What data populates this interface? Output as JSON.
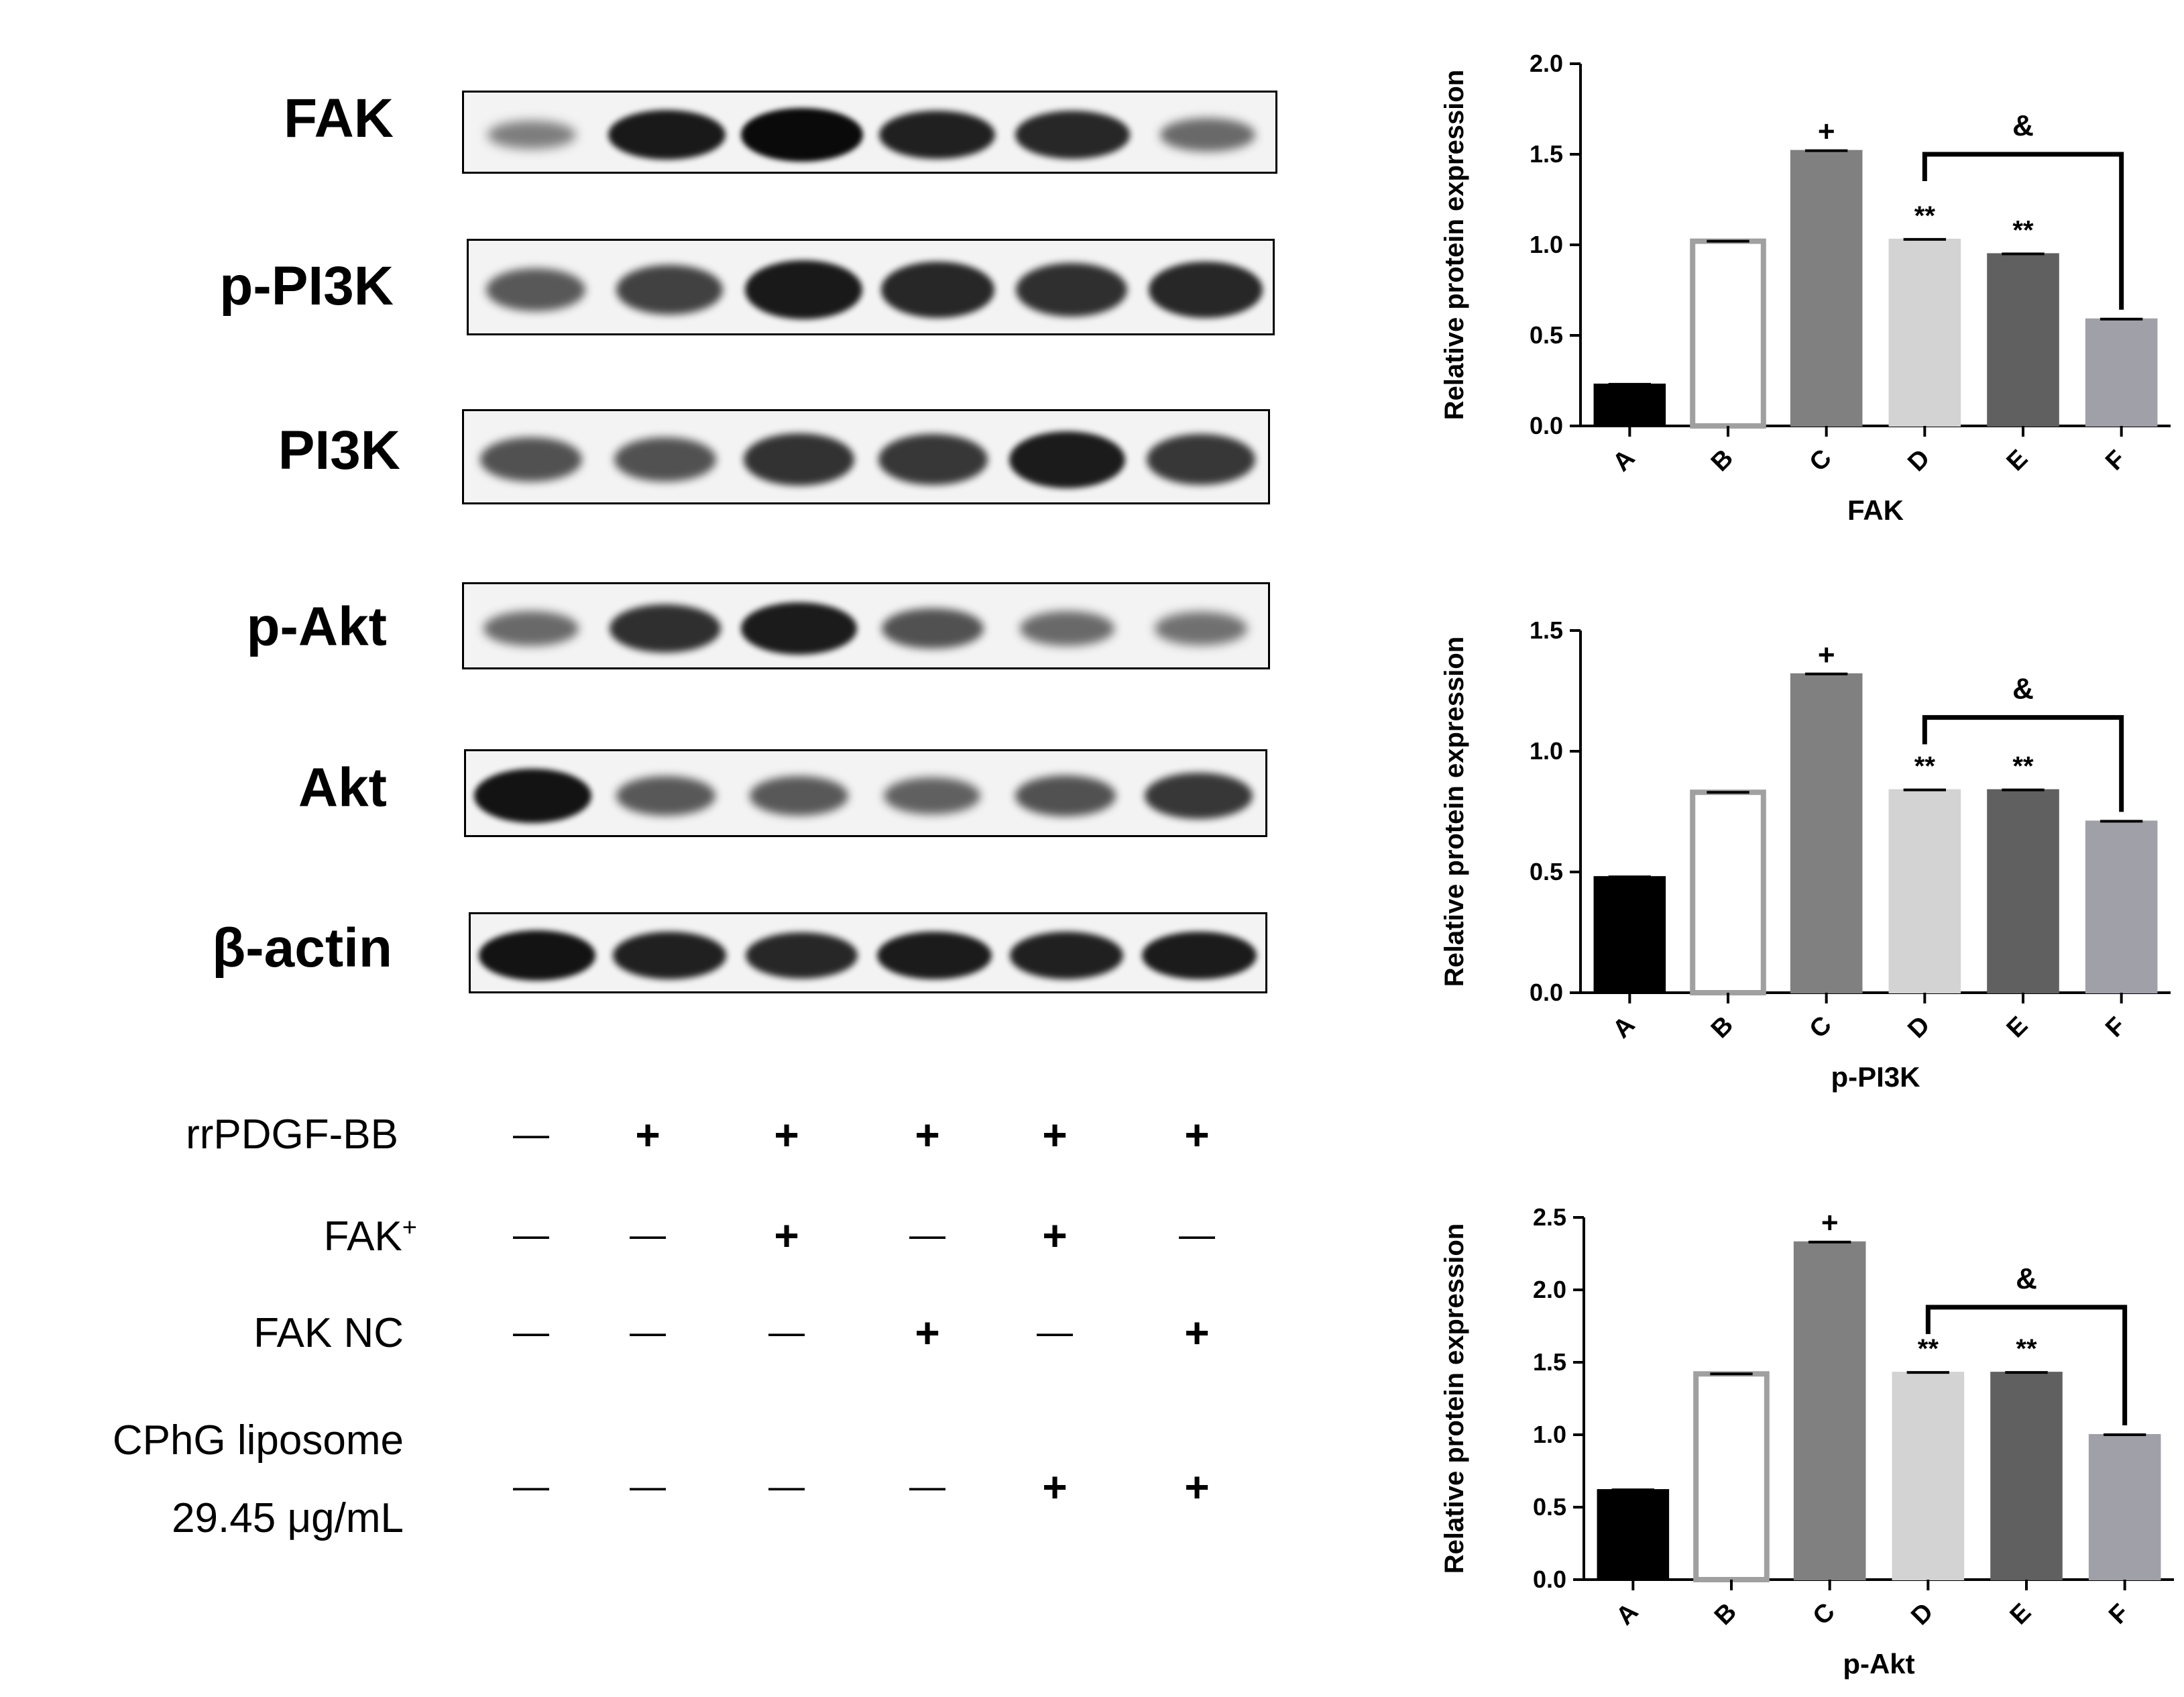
{
  "blots": [
    {
      "label": "FAK",
      "intensity": [
        0.3,
        0.92,
        1.0,
        0.88,
        0.85,
        0.45
      ]
    },
    {
      "label": "p-PI3K",
      "intensity": [
        0.55,
        0.7,
        0.92,
        0.85,
        0.8,
        0.85
      ]
    },
    {
      "label": "PI3K",
      "intensity": [
        0.6,
        0.6,
        0.78,
        0.75,
        0.9,
        0.75
      ]
    },
    {
      "label": "p-Akt",
      "intensity": [
        0.45,
        0.8,
        0.9,
        0.6,
        0.45,
        0.4
      ]
    },
    {
      "label": "Akt",
      "intensity": [
        0.95,
        0.55,
        0.55,
        0.5,
        0.6,
        0.75
      ]
    },
    {
      "label": "β-actin",
      "intensity": [
        0.95,
        0.88,
        0.85,
        0.9,
        0.88,
        0.9
      ]
    }
  ],
  "conditions": [
    {
      "label": "rrPDGF-BB",
      "marks": [
        "—",
        "+",
        "+",
        "+",
        "+",
        "+"
      ]
    },
    {
      "label": "FAK",
      "sup": "+",
      "marks": [
        "—",
        "—",
        "+",
        "—",
        "+",
        "—"
      ]
    },
    {
      "label": "FAK NC",
      "marks": [
        "—",
        "—",
        "—",
        "+",
        "—",
        "+"
      ]
    },
    {
      "label": "CPhG liposome",
      "label2": "29.45 μg/mL",
      "marks": [
        "—",
        "—",
        "—",
        "—",
        "+",
        "+"
      ]
    }
  ],
  "chart_data": [
    {
      "type": "bar",
      "title": "",
      "xlabel": "FAK",
      "ylabel": "Relative protein expression",
      "categories": [
        "A",
        "B",
        "C",
        "D",
        "E",
        "F"
      ],
      "values": [
        0.23,
        1.02,
        1.52,
        1.03,
        0.95,
        0.59
      ],
      "ylim": [
        0,
        2.0
      ],
      "yticks": [
        "0.0",
        "0.5",
        "1.0",
        "1.5",
        "2.0"
      ],
      "significance": [
        "",
        "",
        "+",
        "**",
        "**",
        ""
      ],
      "bracket_label": "&",
      "colors": [
        "#000000",
        "#ffffff",
        "#808080",
        "#d3d3d3",
        "#606060",
        "#a0a0a8"
      ]
    },
    {
      "type": "bar",
      "title": "",
      "xlabel": "p-PI3K",
      "ylabel": "Relative protein expression",
      "categories": [
        "A",
        "B",
        "C",
        "D",
        "E",
        "F"
      ],
      "values": [
        0.48,
        0.83,
        1.32,
        0.84,
        0.84,
        0.71
      ],
      "ylim": [
        0,
        1.5
      ],
      "yticks": [
        "0.0",
        "0.5",
        "1.0",
        "1.5"
      ],
      "significance": [
        "",
        "",
        "+",
        "**",
        "**",
        ""
      ],
      "bracket_label": "&",
      "colors": [
        "#000000",
        "#ffffff",
        "#808080",
        "#d3d3d3",
        "#606060",
        "#a0a0a8"
      ]
    },
    {
      "type": "bar",
      "title": "",
      "xlabel": "p-Akt",
      "ylabel": "Relative protein expression",
      "categories": [
        "A",
        "B",
        "C",
        "D",
        "E",
        "F"
      ],
      "values": [
        0.62,
        1.42,
        2.33,
        1.43,
        1.43,
        1.0
      ],
      "ylim": [
        0,
        2.5
      ],
      "yticks": [
        "0.0",
        "0.5",
        "1.0",
        "1.5",
        "2.0",
        "2.5"
      ],
      "significance": [
        "",
        "",
        "+",
        "**",
        "**",
        ""
      ],
      "bracket_label": "&",
      "colors": [
        "#000000",
        "#ffffff",
        "#808080",
        "#d3d3d3",
        "#606060",
        "#a0a0a8"
      ]
    }
  ]
}
